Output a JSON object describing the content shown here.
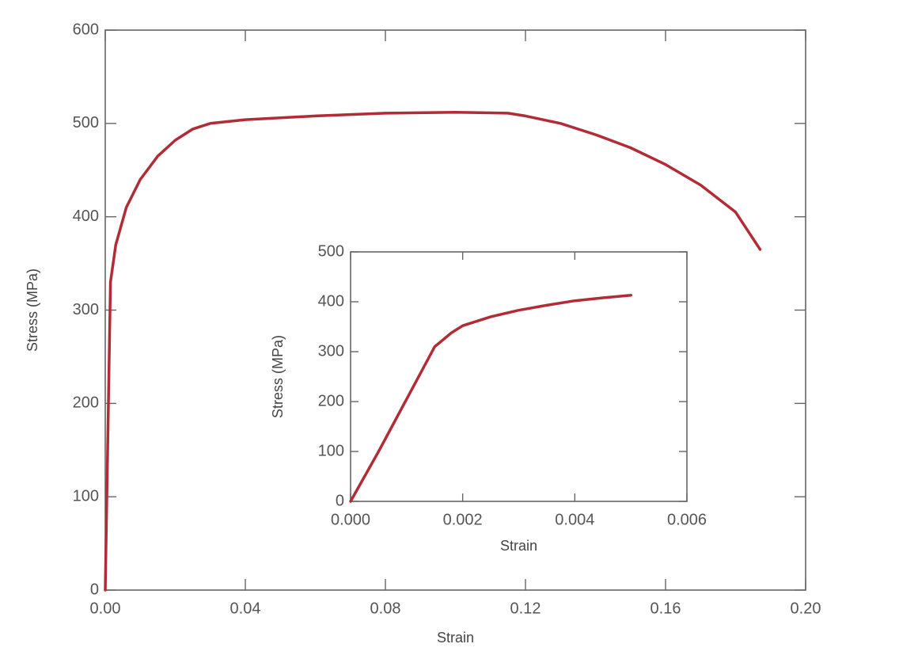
{
  "chart_data": [
    {
      "type": "line",
      "xlabel": "Strain",
      "ylabel": "Stress (MPa)",
      "color": "#b02c36",
      "x": [
        0,
        0.0015,
        0.003,
        0.006,
        0.01,
        0.015,
        0.02,
        0.025,
        0.03,
        0.04,
        0.06,
        0.08,
        0.1,
        0.115,
        0.12,
        0.13,
        0.14,
        0.15,
        0.16,
        0.17,
        0.18,
        0.187
      ],
      "values": [
        0,
        330,
        370,
        410,
        440,
        465,
        482,
        494,
        500,
        504,
        508,
        511,
        512,
        511,
        508,
        500,
        488,
        474,
        456,
        434,
        405,
        365
      ],
      "xlim": [
        0,
        0.2
      ],
      "ylim": [
        0,
        600
      ],
      "xticks": [
        {
          "value": 0,
          "label": "0.00"
        },
        0.04,
        0.08,
        0.12,
        0.16,
        {
          "value": 0.2,
          "label": "0.20"
        }
      ],
      "yticks": [
        0,
        100,
        200,
        300,
        400,
        500,
        600
      ]
    },
    {
      "type": "line",
      "xlabel": "Strain",
      "ylabel": "Stress (MPa)",
      "color": "#b02c36",
      "x": [
        0,
        0.0005,
        0.001,
        0.0015,
        0.0018,
        0.002,
        0.0025,
        0.003,
        0.0035,
        0.004,
        0.0045,
        0.005
      ],
      "values": [
        0,
        100,
        205,
        310,
        338,
        352,
        370,
        383,
        393,
        402,
        408,
        413
      ],
      "xlim": [
        0,
        0.006
      ],
      "ylim": [
        0,
        500
      ],
      "xticks": [
        {
          "value": 0,
          "label": "0.000"
        },
        {
          "value": 0.002,
          "label": "0.002"
        },
        {
          "value": 0.004,
          "label": "0.004"
        },
        {
          "value": 0.006,
          "label": "0.006"
        }
      ],
      "yticks": [
        0,
        100,
        200,
        300,
        400,
        500
      ]
    }
  ]
}
